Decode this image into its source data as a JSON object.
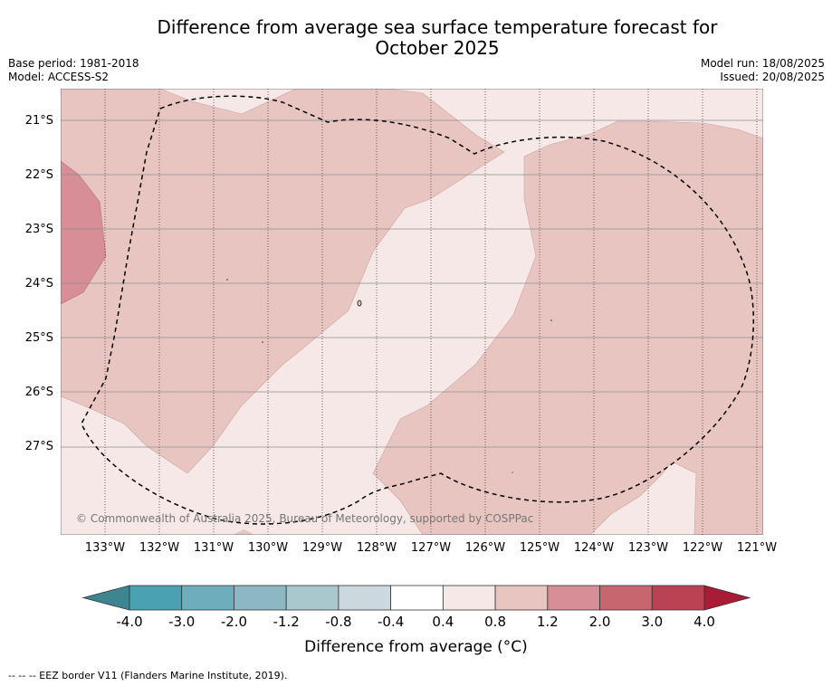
{
  "title_line1": "Difference from average sea surface temperature forecast for",
  "title_line2": "October 2025",
  "base_period": "Base period: 1981-2018",
  "model": "Model: ACCESS-S2",
  "model_run": "Model run: 18/08/2025",
  "issued": "Issued: 20/08/2025",
  "copyright": "© Commonwealth of Australia 2025, Bureau of Meteorology, supported by COSPPac",
  "lat_labels": [
    "21°S",
    "22°S",
    "23°S",
    "24°S",
    "25°S",
    "26°S",
    "27°S"
  ],
  "lon_labels": [
    "133°W",
    "132°W",
    "131°W",
    "130°W",
    "129°W",
    "128°W",
    "127°W",
    "126°W",
    "125°W",
    "124°W",
    "123°W",
    "122°W",
    "121°W"
  ],
  "colorbar": {
    "ticks": [
      "-4.0",
      "-3.0",
      "-2.0",
      "-1.2",
      "-0.8",
      "-0.4",
      "0.4",
      "0.8",
      "1.2",
      "2.0",
      "3.0",
      "4.0"
    ],
    "colors": [
      "#3e8592",
      "#4aa1b1",
      "#6eaebc",
      "#8cb8c4",
      "#a9c8ce",
      "#cbd8dd",
      "#ffffff",
      "#f5e8e7",
      "#e8c5c1",
      "#d88e96",
      "#c8666f",
      "#bb4253",
      "#a81c35"
    ],
    "label": "Difference from average (°C)"
  },
  "footnote": "-- -- -- EEZ border V11 (Flanders Marine Institute, 2019).",
  "map_colors": {
    "light": "#f5e8e7",
    "medium": "#e8c5c1",
    "strong": "#d88e96"
  }
}
